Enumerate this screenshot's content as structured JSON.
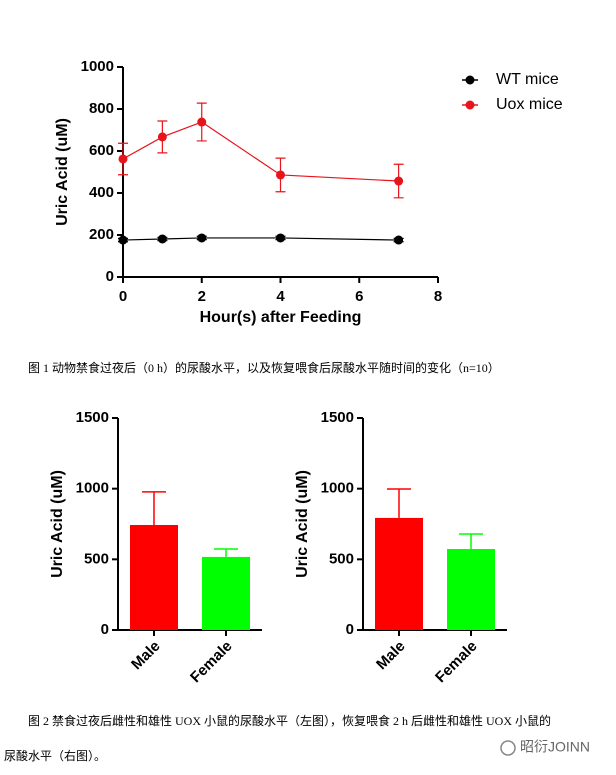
{
  "chart_data": [
    {
      "type": "line",
      "x_label": "Hour(s) after Feeding",
      "y_label": "Uric Acid (uM)",
      "x": [
        0,
        1,
        2,
        4,
        7
      ],
      "xlim": [
        0,
        8
      ],
      "xticks": [
        0,
        2,
        4,
        6,
        8
      ],
      "ylim": [
        0,
        1000
      ],
      "yticks": [
        0,
        200,
        400,
        600,
        800,
        1000
      ],
      "legend": "upper right",
      "series": [
        {
          "name": "WT mice",
          "color": "#000000",
          "values": [
            176,
            181,
            186,
            186,
            176
          ],
          "errors": [
            8,
            8,
            8,
            8,
            8
          ]
        },
        {
          "name": "Uox mice",
          "color": "#e8141b",
          "values": [
            562,
            667,
            738,
            486,
            457
          ],
          "errors": [
            75,
            76,
            90,
            80,
            80
          ]
        }
      ]
    },
    {
      "type": "bar",
      "y_label": "Uric Acid (uM)",
      "categories": [
        "Male",
        "Female"
      ],
      "values": [
        743,
        517
      ],
      "errors": [
        234,
        56
      ],
      "colors": [
        "#ff0000",
        "#00ff00"
      ],
      "ylim": [
        0,
        1500
      ],
      "yticks": [
        0,
        500,
        1000,
        1500
      ]
    },
    {
      "type": "bar",
      "y_label": "Uric Acid (uM)",
      "categories": [
        "Male",
        "Female"
      ],
      "values": [
        793,
        573
      ],
      "errors": [
        205,
        106
      ],
      "colors": [
        "#ff0000",
        "#00ff00"
      ],
      "ylim": [
        0,
        1500
      ],
      "yticks": [
        0,
        500,
        1000,
        1500
      ]
    }
  ],
  "figure1_caption": "图 1 动物禁食过夜后（0 h）的尿酸水平，以及恢复喂食后尿酸水平随时间的变化（n=10）",
  "figure2_caption": [
    "图 2 禁食过夜后雌性和雄性 UOX 小鼠的尿酸水平（左图），恢复喂食 2 h 后雌性和雄性 UOX 小鼠的",
    "尿酸水平（右图）。"
  ],
  "watermark": "昭衍JOINN"
}
